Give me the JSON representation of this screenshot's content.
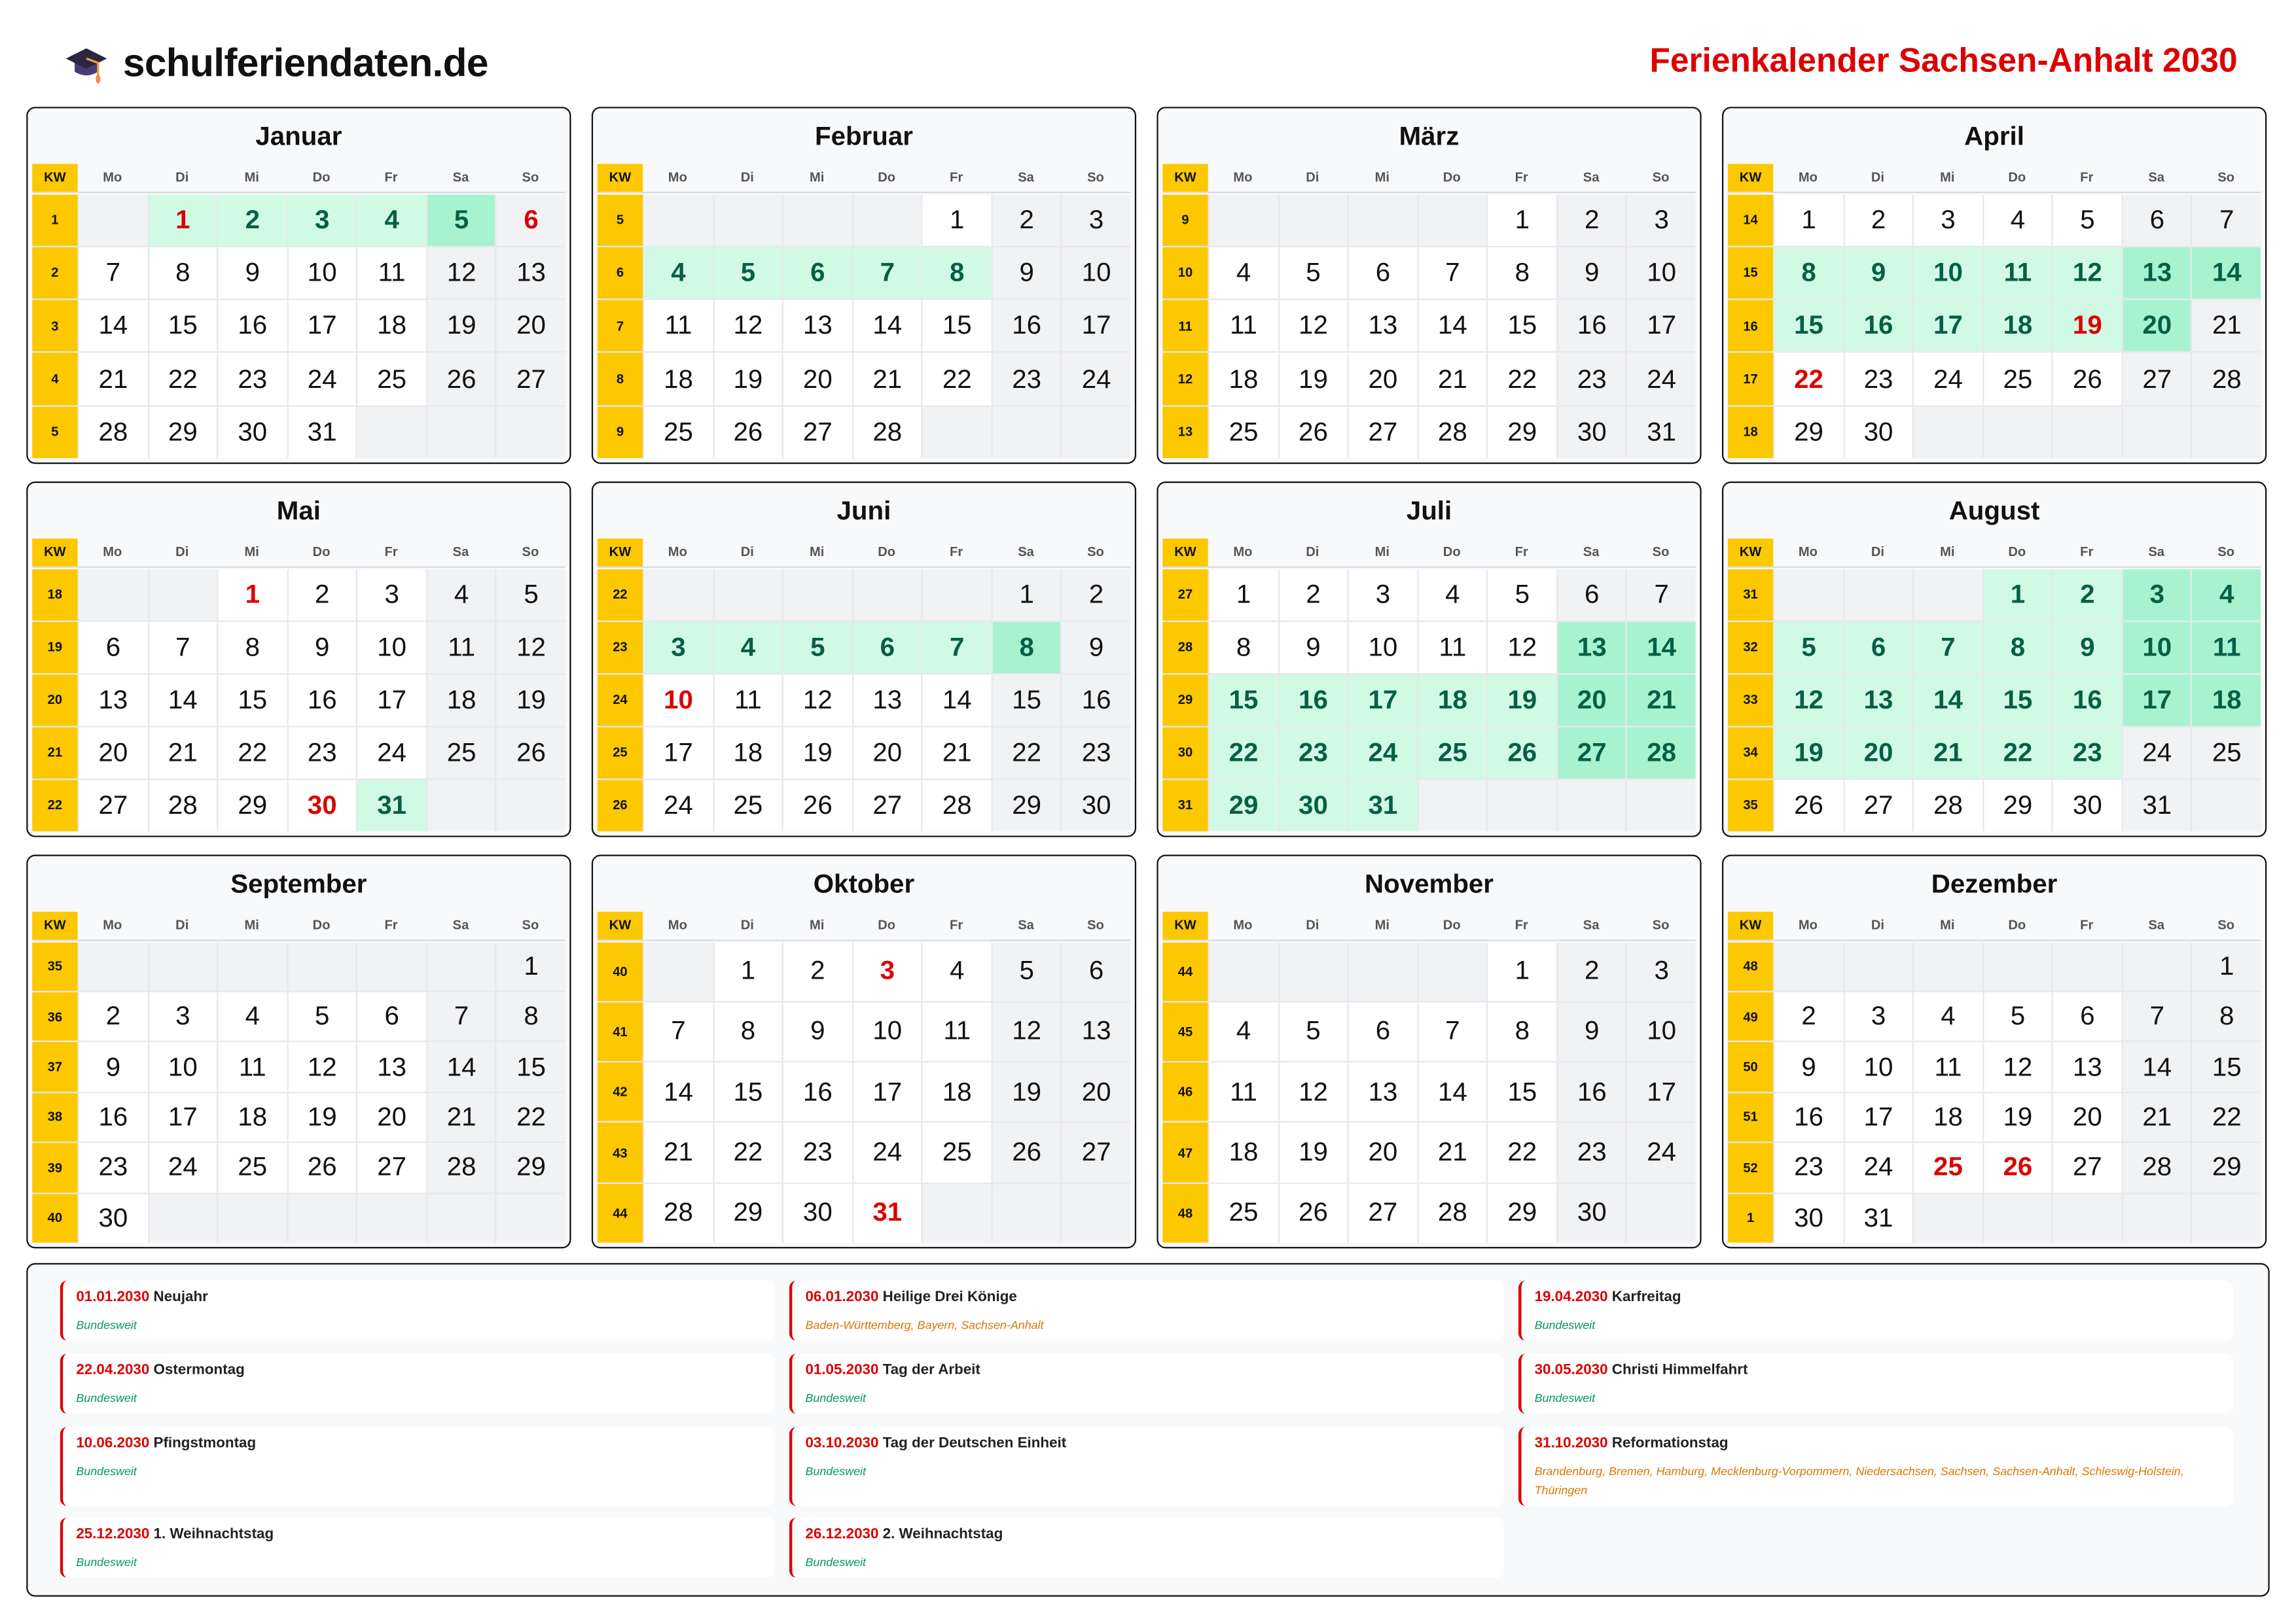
{
  "header": {
    "brand": "schulferiendaten.de",
    "brand_icon": "graduation-cap-icon",
    "title": "Ferienkalender Sachsen-Anhalt 2030"
  },
  "colors": {
    "accent_red": "#dc0000",
    "kw_yellow": "#fcc800",
    "ferien_bg": "#d1fae5",
    "ferien_weekend_bg": "#a7f3d0",
    "ferien_text": "#065f46"
  },
  "weekdays": [
    "Mo",
    "Di",
    "Mi",
    "Do",
    "Fr",
    "Sa",
    "So"
  ],
  "kw_label": "KW",
  "months": [
    {
      "name": "Januar",
      "start_weekday": "Di",
      "days": 31,
      "kw": [
        "1",
        "2",
        "3",
        "4",
        "5"
      ],
      "ferien": [
        1,
        2,
        3,
        4,
        5
      ],
      "holidays": [
        1,
        6
      ]
    },
    {
      "name": "Februar",
      "start_weekday": "Fr",
      "days": 28,
      "kw": [
        "5",
        "6",
        "7",
        "8",
        "9"
      ],
      "ferien": [
        4,
        5,
        6,
        7,
        8
      ],
      "holidays": []
    },
    {
      "name": "März",
      "start_weekday": "Fr",
      "days": 31,
      "kw": [
        "9",
        "10",
        "11",
        "12",
        "13"
      ],
      "ferien": [],
      "holidays": []
    },
    {
      "name": "April",
      "start_weekday": "Mo",
      "days": 30,
      "kw": [
        "14",
        "15",
        "16",
        "17",
        "18"
      ],
      "ferien": [
        8,
        9,
        10,
        11,
        12,
        13,
        14,
        15,
        16,
        17,
        18,
        19,
        20
      ],
      "holidays": [
        19,
        22
      ]
    },
    {
      "name": "Mai",
      "start_weekday": "Mi",
      "days": 31,
      "kw": [
        "18",
        "19",
        "20",
        "21",
        "22"
      ],
      "ferien": [
        31
      ],
      "holidays": [
        1,
        30
      ]
    },
    {
      "name": "Juni",
      "start_weekday": "Sa",
      "days": 30,
      "kw": [
        "22",
        "23",
        "24",
        "25",
        "26"
      ],
      "ferien": [
        3,
        4,
        5,
        6,
        7,
        8
      ],
      "holidays": [
        10
      ]
    },
    {
      "name": "Juli",
      "start_weekday": "Mo",
      "days": 31,
      "kw": [
        "27",
        "28",
        "29",
        "30",
        "31"
      ],
      "ferien": [
        13,
        14,
        15,
        16,
        17,
        18,
        19,
        20,
        21,
        22,
        23,
        24,
        25,
        26,
        27,
        28,
        29,
        30,
        31
      ],
      "holidays": []
    },
    {
      "name": "August",
      "start_weekday": "Do",
      "days": 31,
      "kw": [
        "31",
        "32",
        "33",
        "34",
        "35"
      ],
      "ferien": [
        1,
        2,
        3,
        4,
        5,
        6,
        7,
        8,
        9,
        10,
        11,
        12,
        13,
        14,
        15,
        16,
        17,
        18,
        19,
        20,
        21,
        22,
        23
      ],
      "holidays": []
    },
    {
      "name": "September",
      "start_weekday": "So",
      "days": 30,
      "kw": [
        "35",
        "36",
        "37",
        "38",
        "39",
        "40"
      ],
      "ferien": [],
      "holidays": []
    },
    {
      "name": "Oktober",
      "start_weekday": "Di",
      "days": 31,
      "kw": [
        "40",
        "41",
        "42",
        "43",
        "44"
      ],
      "ferien": [],
      "holidays": [
        3,
        31
      ]
    },
    {
      "name": "November",
      "start_weekday": "Fr",
      "days": 30,
      "kw": [
        "44",
        "45",
        "46",
        "47",
        "48"
      ],
      "ferien": [],
      "holidays": []
    },
    {
      "name": "Dezember",
      "start_weekday": "So",
      "days": 31,
      "kw": [
        "48",
        "49",
        "50",
        "51",
        "52",
        "1"
      ],
      "ferien": [],
      "holidays": [
        25,
        26
      ]
    }
  ],
  "holidays": [
    {
      "date": "01.01.2030",
      "name": "Neujahr",
      "region": "Bundesweit",
      "nationwide": true
    },
    {
      "date": "06.01.2030",
      "name": "Heilige Drei Könige",
      "region": "Baden-Württemberg, Bayern, Sachsen-Anhalt",
      "nationwide": false
    },
    {
      "date": "19.04.2030",
      "name": "Karfreitag",
      "region": "Bundesweit",
      "nationwide": true
    },
    {
      "date": "22.04.2030",
      "name": "Ostermontag",
      "region": "Bundesweit",
      "nationwide": true
    },
    {
      "date": "01.05.2030",
      "name": "Tag der Arbeit",
      "region": "Bundesweit",
      "nationwide": true
    },
    {
      "date": "30.05.2030",
      "name": "Christi Himmelfahrt",
      "region": "Bundesweit",
      "nationwide": true
    },
    {
      "date": "10.06.2030",
      "name": "Pfingstmontag",
      "region": "Bundesweit",
      "nationwide": true
    },
    {
      "date": "03.10.2030",
      "name": "Tag der Deutschen Einheit",
      "region": "Bundesweit",
      "nationwide": true
    },
    {
      "date": "31.10.2030",
      "name": "Reformationstag",
      "region": "Brandenburg, Bremen, Hamburg, Mecklenburg-Vorpommern, Niedersachsen, Sachsen, Sachsen-Anhalt, Schleswig-Holstein, Thüringen",
      "nationwide": false
    },
    {
      "date": "25.12.2030",
      "name": "1. Weihnachtstag",
      "region": "Bundesweit",
      "nationwide": true
    },
    {
      "date": "26.12.2030",
      "name": "2. Weihnachtstag",
      "region": "Bundesweit",
      "nationwide": true
    }
  ]
}
